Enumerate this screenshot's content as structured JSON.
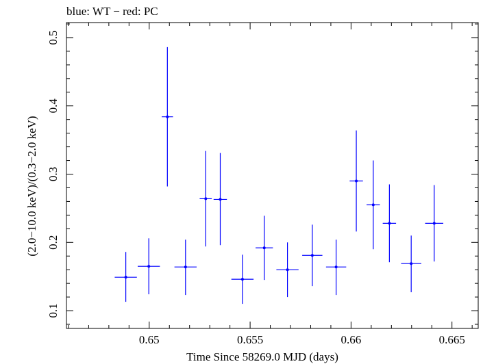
{
  "chart_data": {
    "type": "scatter",
    "title": "blue: WT − red: PC",
    "xlabel": "Time Since 58269.0 MJD (days)",
    "ylabel": "(2.0−10.0 keV)/(0.3−2.0 keV)",
    "xlim": [
      0.6459,
      0.6663
    ],
    "ylim": [
      0.074,
      0.522
    ],
    "x_ticks": [
      0.65,
      0.655,
      0.66,
      0.665
    ],
    "x_tick_labels": [
      "0.65",
      "0.655",
      "0.66",
      "0.665"
    ],
    "y_ticks": [
      0.1,
      0.2,
      0.3,
      0.4,
      0.5
    ],
    "y_tick_labels": [
      "0.1",
      "0.2",
      "0.3",
      "0.4",
      "0.5"
    ],
    "grid": false,
    "series": [
      {
        "name": "WT",
        "color": "#0000ff",
        "points": [
          {
            "x": 0.64884,
            "xerr": 0.00055,
            "y": 0.149,
            "ylo": 0.113,
            "yhi": 0.186
          },
          {
            "x": 0.64998,
            "xerr": 0.00055,
            "y": 0.165,
            "ylo": 0.124,
            "yhi": 0.206
          },
          {
            "x": 0.6509,
            "xerr": 0.00028,
            "y": 0.384,
            "ylo": 0.282,
            "yhi": 0.486
          },
          {
            "x": 0.6518,
            "xerr": 0.00055,
            "y": 0.164,
            "ylo": 0.123,
            "yhi": 0.204
          },
          {
            "x": 0.6528,
            "xerr": 0.0003,
            "y": 0.264,
            "ylo": 0.194,
            "yhi": 0.334
          },
          {
            "x": 0.65352,
            "xerr": 0.00033,
            "y": 0.263,
            "ylo": 0.196,
            "yhi": 0.331
          },
          {
            "x": 0.65462,
            "xerr": 0.00055,
            "y": 0.146,
            "ylo": 0.11,
            "yhi": 0.182
          },
          {
            "x": 0.6557,
            "xerr": 0.00043,
            "y": 0.192,
            "ylo": 0.145,
            "yhi": 0.239
          },
          {
            "x": 0.65685,
            "xerr": 0.00055,
            "y": 0.16,
            "ylo": 0.12,
            "yhi": 0.2
          },
          {
            "x": 0.65808,
            "xerr": 0.0005,
            "y": 0.181,
            "ylo": 0.136,
            "yhi": 0.226
          },
          {
            "x": 0.65926,
            "xerr": 0.0005,
            "y": 0.164,
            "ylo": 0.123,
            "yhi": 0.204
          },
          {
            "x": 0.66026,
            "xerr": 0.00033,
            "y": 0.29,
            "ylo": 0.216,
            "yhi": 0.364
          },
          {
            "x": 0.6611,
            "xerr": 0.00033,
            "y": 0.255,
            "ylo": 0.19,
            "yhi": 0.32
          },
          {
            "x": 0.6619,
            "xerr": 0.00033,
            "y": 0.228,
            "ylo": 0.171,
            "yhi": 0.285
          },
          {
            "x": 0.66298,
            "xerr": 0.0005,
            "y": 0.169,
            "ylo": 0.127,
            "yhi": 0.21
          },
          {
            "x": 0.66412,
            "xerr": 0.00045,
            "y": 0.228,
            "ylo": 0.172,
            "yhi": 0.284
          }
        ]
      }
    ]
  }
}
